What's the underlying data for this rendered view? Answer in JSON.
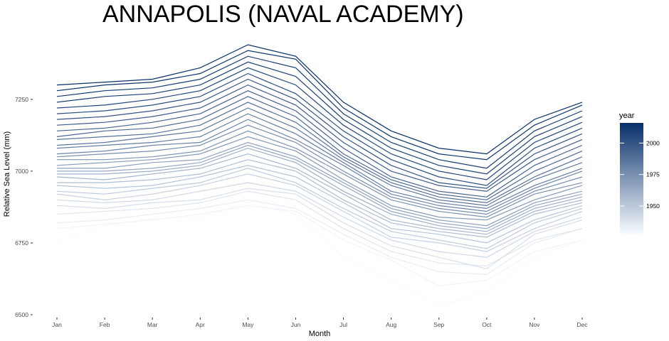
{
  "chart_data": {
    "type": "line",
    "title": "ANNAPOLIS (NAVAL ACADEMY)",
    "xlabel": "Month",
    "ylabel": "Relative Sea Level (mm)",
    "categories": [
      "Jan",
      "Feb",
      "Mar",
      "Apr",
      "May",
      "Jun",
      "Jul",
      "Aug",
      "Sep",
      "Oct",
      "Nov",
      "Dec"
    ],
    "y_ticks": [
      "6500",
      "6750",
      "7000",
      "7250"
    ],
    "ylim": [
      6500,
      7450
    ],
    "grid": false,
    "legend": {
      "title": "year",
      "position": "right",
      "range": [
        1928,
        2016
      ],
      "ticks": [
        "1950",
        "1975",
        "2000"
      ],
      "color_low": "#f7fbff",
      "color_high": "#08306b"
    },
    "series": [
      {
        "year": 1928,
        "values": [
          6755,
          6810,
          6835,
          6840,
          6890,
          6850,
          6700,
          6620,
          6530,
          6580,
          6700,
          6760
        ]
      },
      {
        "year": 1931,
        "values": [
          6800,
          6815,
          6830,
          6850,
          6880,
          6860,
          6760,
          6690,
          6600,
          6620,
          6720,
          6760
        ]
      },
      {
        "year": 1934,
        "values": [
          6820,
          6830,
          6850,
          6870,
          6900,
          6870,
          6780,
          6700,
          6650,
          6640,
          6750,
          6800
        ]
      },
      {
        "year": 1937,
        "values": [
          6850,
          6860,
          6870,
          6890,
          6930,
          6900,
          6800,
          6720,
          6680,
          6670,
          6760,
          6800
        ]
      },
      {
        "year": 1940,
        "values": [
          6880,
          6870,
          6890,
          6900,
          6940,
          6920,
          6820,
          6740,
          6700,
          6660,
          6780,
          6830
        ]
      },
      {
        "year": 1943,
        "values": [
          6900,
          6890,
          6900,
          6930,
          6960,
          6930,
          6840,
          6760,
          6720,
          6700,
          6790,
          6840
        ]
      },
      {
        "year": 1946,
        "values": [
          6920,
          6900,
          6920,
          6950,
          6990,
          6950,
          6860,
          6770,
          6750,
          6720,
          6800,
          6860
        ]
      },
      {
        "year": 1949,
        "values": [
          6930,
          6920,
          6940,
          6960,
          7010,
          6960,
          6870,
          6790,
          6760,
          6730,
          6820,
          6870
        ]
      },
      {
        "year": 1952,
        "values": [
          6950,
          6940,
          6950,
          6980,
          7020,
          6980,
          6890,
          6800,
          6780,
          6750,
          6830,
          6880
        ]
      },
      {
        "year": 1955,
        "values": [
          6960,
          6960,
          6970,
          6990,
          7040,
          7000,
          6900,
          6820,
          6790,
          6770,
          6850,
          6890
        ]
      },
      {
        "year": 1958,
        "values": [
          6980,
          6970,
          6990,
          7010,
          7060,
          7010,
          6920,
          6830,
          6800,
          6780,
          6860,
          6900
        ]
      },
      {
        "year": 1961,
        "values": [
          6990,
          6990,
          7000,
          7020,
          7080,
          7030,
          6930,
          6850,
          6810,
          6790,
          6870,
          6910
        ]
      },
      {
        "year": 1964,
        "values": [
          7000,
          7000,
          7010,
          7030,
          7090,
          7040,
          6950,
          6860,
          6820,
          6800,
          6880,
          6920
        ]
      },
      {
        "year": 1967,
        "values": [
          7010,
          7010,
          7030,
          7040,
          7100,
          7050,
          6960,
          6870,
          6830,
          6810,
          6890,
          6930
        ]
      },
      {
        "year": 1970,
        "values": [
          7020,
          7030,
          7040,
          7060,
          7120,
          7070,
          6970,
          6880,
          6840,
          6830,
          6900,
          6950
        ]
      },
      {
        "year": 1973,
        "values": [
          7040,
          7040,
          7050,
          7070,
          7140,
          7080,
          6990,
          6900,
          6860,
          6840,
          6920,
          6960
        ]
      },
      {
        "year": 1976,
        "values": [
          7050,
          7060,
          7070,
          7090,
          7160,
          7100,
          7000,
          6910,
          6870,
          6850,
          6930,
          6980
        ]
      },
      {
        "year": 1979,
        "values": [
          7060,
          7070,
          7090,
          7100,
          7180,
          7110,
          7020,
          6920,
          6880,
          6860,
          6940,
          7000
        ]
      },
      {
        "year": 1982,
        "values": [
          7080,
          7090,
          7100,
          7120,
          7200,
          7130,
          7030,
          6930,
          6890,
          6870,
          6950,
          7010
        ]
      },
      {
        "year": 1985,
        "values": [
          7090,
          7100,
          7120,
          7140,
          7220,
          7150,
          7040,
          6950,
          6900,
          6880,
          6970,
          7030
        ]
      },
      {
        "year": 1988,
        "values": [
          7110,
          7120,
          7130,
          7160,
          7240,
          7170,
          7050,
          6960,
          6910,
          6890,
          6980,
          7050
        ]
      },
      {
        "year": 1991,
        "values": [
          7120,
          7140,
          7150,
          7180,
          7260,
          7190,
          7060,
          6970,
          6920,
          6900,
          7000,
          7070
        ]
      },
      {
        "year": 1994,
        "values": [
          7140,
          7150,
          7170,
          7200,
          7280,
          7210,
          7080,
          6980,
          6930,
          6910,
          7020,
          7090
        ]
      },
      {
        "year": 1997,
        "values": [
          7160,
          7170,
          7190,
          7220,
          7300,
          7230,
          7100,
          7000,
          6950,
          6930,
          7040,
          7110
        ]
      },
      {
        "year": 2000,
        "values": [
          7180,
          7190,
          7210,
          7240,
          7320,
          7250,
          7120,
          7020,
          6960,
          6940,
          7060,
          7130
        ]
      },
      {
        "year": 2003,
        "values": [
          7200,
          7210,
          7230,
          7260,
          7340,
          7270,
          7140,
          7040,
          6980,
          6950,
          7080,
          7150
        ]
      },
      {
        "year": 2006,
        "values": [
          7220,
          7230,
          7250,
          7280,
          7360,
          7300,
          7160,
          7060,
          7000,
          6970,
          7100,
          7170
        ]
      },
      {
        "year": 2009,
        "values": [
          7240,
          7260,
          7270,
          7300,
          7380,
          7330,
          7180,
          7080,
          7020,
          6990,
          7120,
          7190
        ]
      },
      {
        "year": 2011,
        "values": [
          7260,
          7280,
          7290,
          7320,
          7400,
          7360,
          7200,
          7100,
          7040,
          7010,
          7140,
          7210
        ]
      },
      {
        "year": 2014,
        "values": [
          7280,
          7300,
          7310,
          7340,
          7420,
          7390,
          7220,
          7120,
          7060,
          7040,
          7160,
          7230
        ]
      },
      {
        "year": 2016,
        "values": [
          7300,
          7310,
          7320,
          7360,
          7440,
          7400,
          7240,
          7140,
          7080,
          7060,
          7180,
          7240
        ]
      }
    ]
  }
}
